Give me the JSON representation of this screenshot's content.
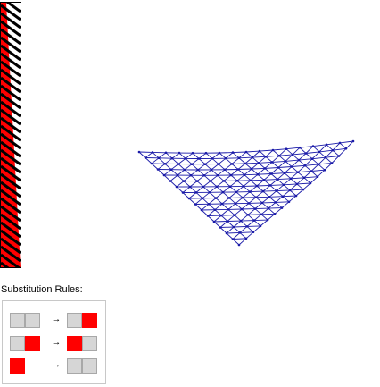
{
  "rules_label": "Substitution Rules:",
  "rule_arrow": "→",
  "colors": {
    "empty": "#d6d6d6",
    "filled": "#ff0000",
    "net": "#1a1aa8"
  },
  "rules": [
    {
      "lhs": [
        "empty",
        "empty"
      ],
      "rhs": [
        "empty",
        "red"
      ]
    },
    {
      "lhs": [
        "empty",
        "red"
      ],
      "rhs": [
        "red",
        "empty"
      ]
    },
    {
      "lhs": [
        "red",
        "none"
      ],
      "rhs": [
        "empty",
        "empty"
      ]
    }
  ]
}
